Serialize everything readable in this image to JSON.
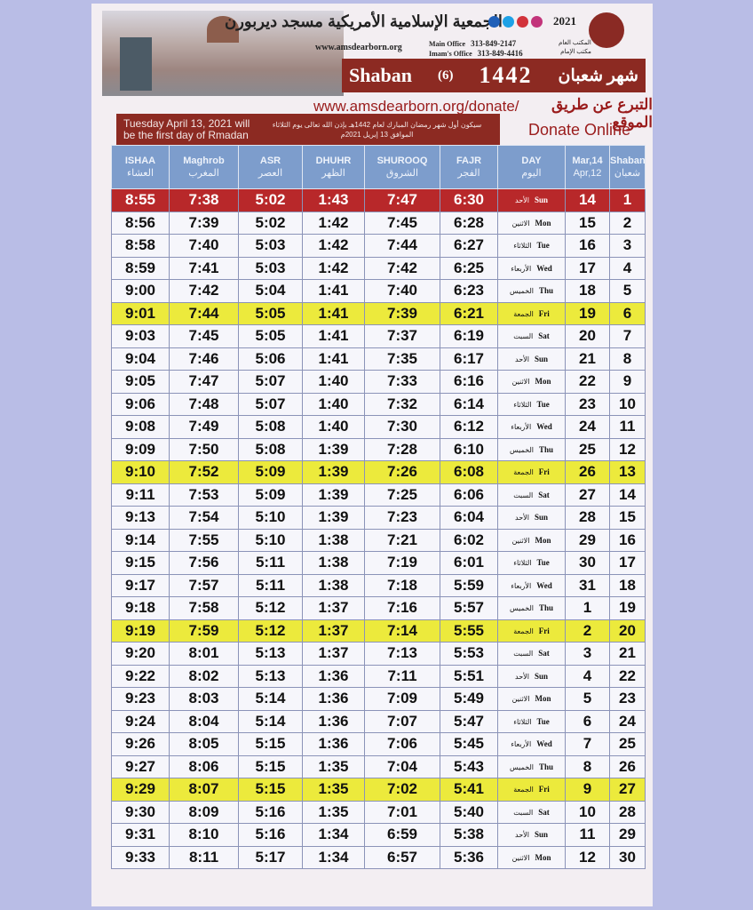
{
  "header": {
    "org_name_ar": "الجمعية الإسلامية الأمريكية مسجد ديربورن",
    "year": "2021",
    "website": "www.amsdearborn.org",
    "main_office_label": "Main Office",
    "main_office_phone": "313-849-2147",
    "imam_office_label": "Imam's Office",
    "imam_office_phone": "313-849-4416",
    "main_office_ar": "المكتب العام",
    "imam_office_ar": "مكتب الإمام",
    "social_colors": [
      "#1f5fb8",
      "#1ea1e6",
      "#d2333b",
      "#c2337a"
    ]
  },
  "banner": {
    "month_en": "Shaban",
    "month_num": "(6)",
    "hijri_year": "1442",
    "month_ar": "شهر شعبان"
  },
  "donate": {
    "url": "www.amsdearborn.org/donate/",
    "label_ar": "التبرع عن طريق الموقع",
    "label_en": "Donate Online"
  },
  "notice": {
    "en": "Tuesday April 13, 2021 will be the first day of Rmadan",
    "ar": "سيكون أول شهر رمضان المبارك لعام 1442هـ بإذن الله تعالى يوم الثلاثاء الموافق 13 إبريل 2021م"
  },
  "columns": [
    {
      "en": "ISHAA",
      "ar": "العشاء"
    },
    {
      "en": "Maghrob",
      "ar": "المغرب"
    },
    {
      "en": "ASR",
      "ar": "العصر"
    },
    {
      "en": "DHUHR",
      "ar": "الظهر"
    },
    {
      "en": "SHUROOQ",
      "ar": "الشروق"
    },
    {
      "en": "FAJR",
      "ar": "الفجر"
    },
    {
      "en": "DAY",
      "ar": "اليوم"
    },
    {
      "en": "Mar,14",
      "ar": "Apr,12"
    },
    {
      "en": "Shaban",
      "ar": "شعبان"
    }
  ],
  "rows": [
    {
      "ishaa": "8:55",
      "maghrib": "7:38",
      "asr": "5:02",
      "dhuhr": "1:43",
      "shurooq": "7:47",
      "fajr": "6:30",
      "day": "Sun",
      "day_ar": "الأحد",
      "date": "14",
      "hijri": "1",
      "highlight": "red"
    },
    {
      "ishaa": "8:56",
      "maghrib": "7:39",
      "asr": "5:02",
      "dhuhr": "1:42",
      "shurooq": "7:45",
      "fajr": "6:28",
      "day": "Mon",
      "day_ar": "الاثنين",
      "date": "15",
      "hijri": "2"
    },
    {
      "ishaa": "8:58",
      "maghrib": "7:40",
      "asr": "5:03",
      "dhuhr": "1:42",
      "shurooq": "7:44",
      "fajr": "6:27",
      "day": "Tue",
      "day_ar": "الثلاثاء",
      "date": "16",
      "hijri": "3"
    },
    {
      "ishaa": "8:59",
      "maghrib": "7:41",
      "asr": "5:03",
      "dhuhr": "1:42",
      "shurooq": "7:42",
      "fajr": "6:25",
      "day": "Wed",
      "day_ar": "الأربعاء",
      "date": "17",
      "hijri": "4"
    },
    {
      "ishaa": "9:00",
      "maghrib": "7:42",
      "asr": "5:04",
      "dhuhr": "1:41",
      "shurooq": "7:40",
      "fajr": "6:23",
      "day": "Thu",
      "day_ar": "الخميس",
      "date": "18",
      "hijri": "5"
    },
    {
      "ishaa": "9:01",
      "maghrib": "7:44",
      "asr": "5:05",
      "dhuhr": "1:41",
      "shurooq": "7:39",
      "fajr": "6:21",
      "day": "Fri",
      "day_ar": "الجمعة",
      "date": "19",
      "hijri": "6",
      "highlight": "yellow"
    },
    {
      "ishaa": "9:03",
      "maghrib": "7:45",
      "asr": "5:05",
      "dhuhr": "1:41",
      "shurooq": "7:37",
      "fajr": "6:19",
      "day": "Sat",
      "day_ar": "السبت",
      "date": "20",
      "hijri": "7"
    },
    {
      "ishaa": "9:04",
      "maghrib": "7:46",
      "asr": "5:06",
      "dhuhr": "1:41",
      "shurooq": "7:35",
      "fajr": "6:17",
      "day": "Sun",
      "day_ar": "الأحد",
      "date": "21",
      "hijri": "8"
    },
    {
      "ishaa": "9:05",
      "maghrib": "7:47",
      "asr": "5:07",
      "dhuhr": "1:40",
      "shurooq": "7:33",
      "fajr": "6:16",
      "day": "Mon",
      "day_ar": "الاثنين",
      "date": "22",
      "hijri": "9"
    },
    {
      "ishaa": "9:06",
      "maghrib": "7:48",
      "asr": "5:07",
      "dhuhr": "1:40",
      "shurooq": "7:32",
      "fajr": "6:14",
      "day": "Tue",
      "day_ar": "الثلاثاء",
      "date": "23",
      "hijri": "10"
    },
    {
      "ishaa": "9:08",
      "maghrib": "7:49",
      "asr": "5:08",
      "dhuhr": "1:40",
      "shurooq": "7:30",
      "fajr": "6:12",
      "day": "Wed",
      "day_ar": "الأربعاء",
      "date": "24",
      "hijri": "11"
    },
    {
      "ishaa": "9:09",
      "maghrib": "7:50",
      "asr": "5:08",
      "dhuhr": "1:39",
      "shurooq": "7:28",
      "fajr": "6:10",
      "day": "Thu",
      "day_ar": "الخميس",
      "date": "25",
      "hijri": "12"
    },
    {
      "ishaa": "9:10",
      "maghrib": "7:52",
      "asr": "5:09",
      "dhuhr": "1:39",
      "shurooq": "7:26",
      "fajr": "6:08",
      "day": "Fri",
      "day_ar": "الجمعة",
      "date": "26",
      "hijri": "13",
      "highlight": "yellow"
    },
    {
      "ishaa": "9:11",
      "maghrib": "7:53",
      "asr": "5:09",
      "dhuhr": "1:39",
      "shurooq": "7:25",
      "fajr": "6:06",
      "day": "Sat",
      "day_ar": "السبت",
      "date": "27",
      "hijri": "14"
    },
    {
      "ishaa": "9:13",
      "maghrib": "7:54",
      "asr": "5:10",
      "dhuhr": "1:39",
      "shurooq": "7:23",
      "fajr": "6:04",
      "day": "Sun",
      "day_ar": "الأحد",
      "date": "28",
      "hijri": "15"
    },
    {
      "ishaa": "9:14",
      "maghrib": "7:55",
      "asr": "5:10",
      "dhuhr": "1:38",
      "shurooq": "7:21",
      "fajr": "6:02",
      "day": "Mon",
      "day_ar": "الاثنين",
      "date": "29",
      "hijri": "16"
    },
    {
      "ishaa": "9:15",
      "maghrib": "7:56",
      "asr": "5:11",
      "dhuhr": "1:38",
      "shurooq": "7:19",
      "fajr": "6:01",
      "day": "Tue",
      "day_ar": "الثلاثاء",
      "date": "30",
      "hijri": "17"
    },
    {
      "ishaa": "9:17",
      "maghrib": "7:57",
      "asr": "5:11",
      "dhuhr": "1:38",
      "shurooq": "7:18",
      "fajr": "5:59",
      "day": "Wed",
      "day_ar": "الأربعاء",
      "date": "31",
      "hijri": "18"
    },
    {
      "ishaa": "9:18",
      "maghrib": "7:58",
      "asr": "5:12",
      "dhuhr": "1:37",
      "shurooq": "7:16",
      "fajr": "5:57",
      "day": "Thu",
      "day_ar": "الخميس",
      "date": "1",
      "hijri": "19"
    },
    {
      "ishaa": "9:19",
      "maghrib": "7:59",
      "asr": "5:12",
      "dhuhr": "1:37",
      "shurooq": "7:14",
      "fajr": "5:55",
      "day": "Fri",
      "day_ar": "الجمعة",
      "date": "2",
      "hijri": "20",
      "highlight": "yellow"
    },
    {
      "ishaa": "9:20",
      "maghrib": "8:01",
      "asr": "5:13",
      "dhuhr": "1:37",
      "shurooq": "7:13",
      "fajr": "5:53",
      "day": "Sat",
      "day_ar": "السبت",
      "date": "3",
      "hijri": "21"
    },
    {
      "ishaa": "9:22",
      "maghrib": "8:02",
      "asr": "5:13",
      "dhuhr": "1:36",
      "shurooq": "7:11",
      "fajr": "5:51",
      "day": "Sun",
      "day_ar": "الأحد",
      "date": "4",
      "hijri": "22"
    },
    {
      "ishaa": "9:23",
      "maghrib": "8:03",
      "asr": "5:14",
      "dhuhr": "1:36",
      "shurooq": "7:09",
      "fajr": "5:49",
      "day": "Mon",
      "day_ar": "الاثنين",
      "date": "5",
      "hijri": "23"
    },
    {
      "ishaa": "9:24",
      "maghrib": "8:04",
      "asr": "5:14",
      "dhuhr": "1:36",
      "shurooq": "7:07",
      "fajr": "5:47",
      "day": "Tue",
      "day_ar": "الثلاثاء",
      "date": "6",
      "hijri": "24"
    },
    {
      "ishaa": "9:26",
      "maghrib": "8:05",
      "asr": "5:15",
      "dhuhr": "1:36",
      "shurooq": "7:06",
      "fajr": "5:45",
      "day": "Wed",
      "day_ar": "الأربعاء",
      "date": "7",
      "hijri": "25"
    },
    {
      "ishaa": "9:27",
      "maghrib": "8:06",
      "asr": "5:15",
      "dhuhr": "1:35",
      "shurooq": "7:04",
      "fajr": "5:43",
      "day": "Thu",
      "day_ar": "الخميس",
      "date": "8",
      "hijri": "26"
    },
    {
      "ishaa": "9:29",
      "maghrib": "8:07",
      "asr": "5:15",
      "dhuhr": "1:35",
      "shurooq": "7:02",
      "fajr": "5:41",
      "day": "Fri",
      "day_ar": "الجمعة",
      "date": "9",
      "hijri": "27",
      "highlight": "yellow"
    },
    {
      "ishaa": "9:30",
      "maghrib": "8:09",
      "asr": "5:16",
      "dhuhr": "1:35",
      "shurooq": "7:01",
      "fajr": "5:40",
      "day": "Sat",
      "day_ar": "السبت",
      "date": "10",
      "hijri": "28"
    },
    {
      "ishaa": "9:31",
      "maghrib": "8:10",
      "asr": "5:16",
      "dhuhr": "1:34",
      "shurooq": "6:59",
      "fajr": "5:38",
      "day": "Sun",
      "day_ar": "الأحد",
      "date": "11",
      "hijri": "29"
    },
    {
      "ishaa": "9:33",
      "maghrib": "8:11",
      "asr": "5:17",
      "dhuhr": "1:34",
      "shurooq": "6:57",
      "fajr": "5:36",
      "day": "Mon",
      "day_ar": "الاثنين",
      "date": "12",
      "hijri": "30"
    }
  ]
}
